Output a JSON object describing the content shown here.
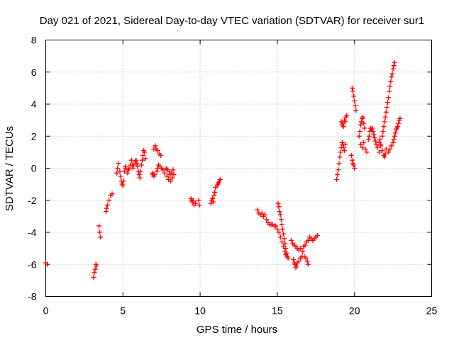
{
  "chart_data": {
    "type": "scatter",
    "title": "Day 021 of 2021, Sidereal Day-to-day VTEC variation (SDTVAR) for receiver sur1",
    "xlabel": "GPS time / hours",
    "ylabel": "SDTVAR / TECUs",
    "xlim": [
      0,
      25
    ],
    "ylim": [
      -8,
      8
    ],
    "xticks": [
      0,
      5,
      10,
      15,
      20,
      25
    ],
    "yticks": [
      -8,
      -6,
      -4,
      -2,
      0,
      2,
      4,
      6,
      8
    ],
    "grid": true,
    "marker": "+",
    "marker_color": "#ff0000",
    "segments": [
      {
        "name": "s1",
        "points": [
          [
            0.0,
            -5.9
          ],
          [
            0.1,
            -6.0
          ]
        ]
      },
      {
        "name": "s2",
        "points": [
          [
            3.1,
            -6.8
          ],
          [
            3.15,
            -6.5
          ],
          [
            3.2,
            -6.3
          ],
          [
            3.25,
            -6.0
          ],
          [
            3.3,
            -6.1
          ]
        ]
      },
      {
        "name": "s3",
        "points": [
          [
            3.45,
            -3.6
          ],
          [
            3.5,
            -4.0
          ],
          [
            3.55,
            -4.3
          ]
        ]
      },
      {
        "name": "s4",
        "points": [
          [
            3.9,
            -2.7
          ],
          [
            3.95,
            -2.5
          ],
          [
            4.0,
            -2.3
          ],
          [
            4.1,
            -2.0
          ],
          [
            4.2,
            -1.7
          ],
          [
            4.3,
            -1.6
          ]
        ]
      },
      {
        "name": "s5",
        "points": [
          [
            4.6,
            -0.3
          ],
          [
            4.65,
            0.0
          ],
          [
            4.7,
            0.3
          ],
          [
            4.8,
            -0.2
          ],
          [
            4.85,
            -0.5
          ],
          [
            4.9,
            -0.8
          ],
          [
            4.95,
            -1.0
          ],
          [
            5.0,
            -1.1
          ],
          [
            5.05,
            -0.8
          ],
          [
            5.1,
            -0.2
          ],
          [
            5.15,
            0.1
          ],
          [
            5.2,
            0.0
          ],
          [
            5.3,
            -0.3
          ],
          [
            5.35,
            -0.1
          ],
          [
            5.4,
            0.0
          ],
          [
            5.5,
            0.2
          ],
          [
            5.55,
            0.5
          ],
          [
            5.6,
            0.2
          ],
          [
            5.65,
            0.0
          ],
          [
            5.7,
            0.2
          ],
          [
            5.8,
            0.4
          ],
          [
            5.85,
            0.5
          ],
          [
            5.9,
            0.3
          ],
          [
            5.95,
            0.1
          ],
          [
            6.0,
            -0.2
          ],
          [
            6.05,
            -0.4
          ],
          [
            6.1,
            -0.6
          ],
          [
            6.15,
            -0.2
          ],
          [
            6.2,
            0.2
          ],
          [
            6.25,
            0.5
          ],
          [
            6.3,
            0.8
          ],
          [
            6.35,
            1.1
          ],
          [
            6.4,
            1.0
          ],
          [
            6.45,
            0.6
          ]
        ]
      },
      {
        "name": "s6",
        "points": [
          [
            6.9,
            -0.3
          ],
          [
            6.95,
            -0.4
          ],
          [
            7.0,
            -0.5
          ],
          [
            7.0,
            1.2
          ],
          [
            7.05,
            -0.4
          ],
          [
            7.1,
            1.4
          ],
          [
            7.15,
            1.2
          ],
          [
            7.2,
            -0.2
          ],
          [
            7.25,
            0.0
          ],
          [
            7.25,
            1.1
          ],
          [
            7.3,
            0.2
          ],
          [
            7.35,
            0.9
          ],
          [
            7.4,
            0.1
          ],
          [
            7.45,
            0.8
          ],
          [
            7.5,
            0.0
          ],
          [
            7.6,
            -0.1
          ],
          [
            7.7,
            -0.3
          ],
          [
            7.8,
            0.0
          ],
          [
            7.85,
            -0.5
          ],
          [
            7.9,
            -0.1
          ],
          [
            7.95,
            -0.7
          ],
          [
            8.0,
            -0.2
          ],
          [
            8.05,
            -0.4
          ],
          [
            8.1,
            -0.8
          ],
          [
            8.15,
            -0.3
          ],
          [
            8.2,
            -0.6
          ],
          [
            8.25,
            -0.1
          ],
          [
            8.3,
            -0.4
          ]
        ]
      },
      {
        "name": "s7",
        "points": [
          [
            9.4,
            -1.9
          ],
          [
            9.45,
            -2.0
          ],
          [
            9.5,
            -2.1
          ],
          [
            9.55,
            -2.0
          ],
          [
            9.6,
            -2.3
          ],
          [
            9.7,
            -2.2
          ],
          [
            9.9,
            -2.0
          ],
          [
            9.95,
            -2.3
          ]
        ]
      },
      {
        "name": "s8",
        "points": [
          [
            10.7,
            -2.2
          ],
          [
            10.75,
            -2.0
          ],
          [
            10.8,
            -1.9
          ],
          [
            10.85,
            -2.1
          ],
          [
            10.9,
            -1.7
          ],
          [
            10.95,
            -1.5
          ],
          [
            11.0,
            -1.2
          ],
          [
            11.1,
            -1.1
          ],
          [
            11.15,
            -1.0
          ],
          [
            11.2,
            -0.9
          ],
          [
            11.25,
            -0.8
          ],
          [
            11.3,
            -0.7
          ]
        ]
      },
      {
        "name": "s9",
        "points": [
          [
            13.7,
            -2.6
          ],
          [
            13.8,
            -2.8
          ],
          [
            13.9,
            -2.9
          ],
          [
            14.0,
            -2.8
          ],
          [
            14.1,
            -3.0
          ],
          [
            14.2,
            -2.9
          ],
          [
            14.3,
            -3.2
          ],
          [
            14.4,
            -3.4
          ],
          [
            14.5,
            -3.5
          ],
          [
            14.6,
            -3.5
          ],
          [
            14.7,
            -3.5
          ],
          [
            14.8,
            -3.6
          ],
          [
            14.9,
            -3.6
          ],
          [
            15.0,
            -3.8
          ],
          [
            15.1,
            -4.0
          ],
          [
            15.2,
            -4.3
          ],
          [
            15.3,
            -4.6
          ],
          [
            15.4,
            -4.9
          ],
          [
            15.5,
            -5.2
          ],
          [
            15.55,
            -5.4
          ]
        ]
      },
      {
        "name": "s10",
        "points": [
          [
            15.05,
            -2.2
          ],
          [
            15.1,
            -2.4
          ],
          [
            15.15,
            -2.7
          ],
          [
            15.2,
            -2.9
          ],
          [
            15.25,
            -3.2
          ],
          [
            15.3,
            -3.5
          ],
          [
            15.35,
            -3.8
          ],
          [
            15.4,
            -4.1
          ],
          [
            15.45,
            -4.4
          ],
          [
            15.5,
            -4.7
          ],
          [
            15.55,
            -5.0
          ],
          [
            15.6,
            -5.3
          ],
          [
            15.65,
            -5.5
          ],
          [
            15.7,
            -5.6
          ]
        ]
      },
      {
        "name": "s11",
        "points": [
          [
            15.9,
            -4.5
          ],
          [
            16.0,
            -4.7
          ],
          [
            16.05,
            -5.7
          ],
          [
            16.1,
            -4.8
          ],
          [
            16.1,
            -5.9
          ],
          [
            16.15,
            -6.0
          ],
          [
            16.2,
            -6.2
          ],
          [
            16.2,
            -4.9
          ],
          [
            16.25,
            -6.1
          ],
          [
            16.3,
            -5.0
          ],
          [
            16.3,
            -5.9
          ],
          [
            16.4,
            -5.8
          ],
          [
            16.4,
            -5.1
          ],
          [
            16.5,
            -5.6
          ],
          [
            16.5,
            -5.0
          ],
          [
            16.6,
            -5.5
          ],
          [
            16.65,
            -5.2
          ],
          [
            16.7,
            -4.9
          ],
          [
            16.75,
            -5.5
          ],
          [
            16.8,
            -4.8
          ],
          [
            16.85,
            -5.6
          ],
          [
            16.9,
            -4.6
          ],
          [
            16.95,
            -5.8
          ],
          [
            17.0,
            -4.5
          ],
          [
            17.0,
            -6.0
          ],
          [
            17.1,
            -4.3
          ],
          [
            17.2,
            -4.4
          ],
          [
            17.3,
            -4.5
          ],
          [
            17.4,
            -4.4
          ],
          [
            17.5,
            -4.3
          ],
          [
            17.6,
            -4.2
          ]
        ]
      },
      {
        "name": "s12",
        "points": [
          [
            18.85,
            -0.7
          ],
          [
            18.9,
            -0.4
          ],
          [
            18.95,
            -0.1
          ],
          [
            19.0,
            0.3
          ],
          [
            19.05,
            0.7
          ],
          [
            19.1,
            1.0
          ],
          [
            19.15,
            1.3
          ],
          [
            19.2,
            1.6
          ],
          [
            19.25,
            1.5
          ],
          [
            19.3,
            1.3
          ],
          [
            19.35,
            1.1
          ],
          [
            19.4,
            1.5
          ],
          [
            19.15,
            2.9
          ],
          [
            19.2,
            2.7
          ],
          [
            19.25,
            2.8
          ],
          [
            19.3,
            2.6
          ],
          [
            19.35,
            3.0
          ],
          [
            19.4,
            2.9
          ],
          [
            19.45,
            3.2
          ],
          [
            19.5,
            3.3
          ]
        ]
      },
      {
        "name": "s13",
        "points": [
          [
            19.8,
            0.8
          ],
          [
            19.85,
            0.5
          ],
          [
            19.9,
            0.3
          ],
          [
            19.95,
            0.2
          ],
          [
            20.0,
            0.0
          ],
          [
            19.85,
            5.0
          ],
          [
            19.9,
            4.8
          ],
          [
            19.95,
            4.5
          ],
          [
            20.0,
            4.2
          ],
          [
            20.05,
            3.9
          ],
          [
            20.1,
            3.6
          ]
        ]
      },
      {
        "name": "s14",
        "points": [
          [
            20.3,
            2.0
          ],
          [
            20.35,
            2.3
          ],
          [
            20.4,
            2.7
          ],
          [
            20.45,
            2.9
          ],
          [
            20.5,
            3.1
          ],
          [
            20.55,
            3.2
          ],
          [
            20.6,
            2.8
          ],
          [
            20.65,
            2.5
          ],
          [
            20.4,
            1.5
          ],
          [
            20.5,
            1.3
          ],
          [
            20.6,
            1.6
          ],
          [
            20.7,
            1.2
          ],
          [
            20.8,
            1.0
          ],
          [
            20.9,
            1.8
          ],
          [
            20.95,
            2.0
          ],
          [
            21.0,
            2.3
          ],
          [
            21.05,
            2.5
          ],
          [
            21.1,
            2.4
          ],
          [
            21.15,
            2.5
          ],
          [
            21.2,
            2.3
          ],
          [
            21.25,
            2.1
          ],
          [
            21.3,
            1.9
          ],
          [
            21.35,
            1.7
          ],
          [
            21.4,
            1.5
          ],
          [
            21.5,
            1.3
          ],
          [
            21.6,
            1.6
          ],
          [
            21.65,
            1.8
          ],
          [
            21.7,
            1.4
          ],
          [
            21.8,
            1.1
          ],
          [
            21.9,
            0.8
          ],
          [
            21.95,
            0.7
          ],
          [
            22.0,
            0.9
          ],
          [
            22.05,
            1.2
          ],
          [
            21.6,
            1.0
          ],
          [
            21.7,
            1.5
          ],
          [
            21.8,
            2.0
          ],
          [
            21.85,
            2.3
          ],
          [
            21.9,
            2.6
          ],
          [
            21.95,
            2.9
          ],
          [
            22.0,
            3.2
          ],
          [
            22.05,
            3.5
          ],
          [
            22.1,
            3.8
          ],
          [
            22.15,
            4.1
          ],
          [
            22.2,
            4.4
          ],
          [
            22.25,
            4.8
          ],
          [
            22.3,
            5.1
          ],
          [
            22.35,
            5.4
          ],
          [
            22.4,
            5.7
          ],
          [
            22.45,
            5.9
          ],
          [
            22.5,
            6.2
          ],
          [
            22.55,
            6.4
          ],
          [
            22.6,
            6.6
          ]
        ]
      },
      {
        "name": "s15",
        "points": [
          [
            22.2,
            1.0
          ],
          [
            22.3,
            1.2
          ],
          [
            22.4,
            1.4
          ],
          [
            22.5,
            1.6
          ],
          [
            22.55,
            1.8
          ],
          [
            22.6,
            2.0
          ],
          [
            22.65,
            2.2
          ],
          [
            22.7,
            2.4
          ],
          [
            22.75,
            2.5
          ],
          [
            22.8,
            2.6
          ],
          [
            22.85,
            2.8
          ],
          [
            22.9,
            3.0
          ],
          [
            22.95,
            3.1
          ]
        ]
      }
    ]
  }
}
